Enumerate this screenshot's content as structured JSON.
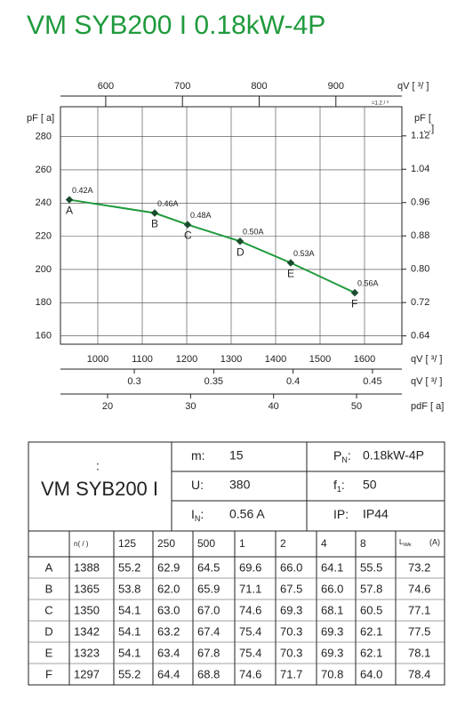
{
  "title": "VM SYB200 I 0.18kW-4P",
  "chart_data": {
    "type": "line",
    "x": [
      936,
      1128,
      1202,
      1320,
      1434,
      1578
    ],
    "series": [
      {
        "color": "#1f9a3c",
        "values": [
          242,
          234,
          227,
          217,
          204,
          186
        ]
      }
    ],
    "point_labels": [
      "A",
      "B",
      "C",
      "D",
      "E",
      "F"
    ],
    "current_labels": [
      "0.42A",
      "0.46A",
      "0.48A",
      "0.50A",
      "0.53A",
      "0.56A"
    ],
    "xlim": [
      916,
      1684
    ],
    "xticks": [
      1000,
      1100,
      1200,
      1300,
      1400,
      1500,
      1600
    ],
    "x_label": "qV [  ³/  ]",
    "ylim": [
      155,
      298
    ],
    "yticks": [
      160,
      180,
      200,
      220,
      240,
      260,
      280
    ],
    "y_label": "pF [  a]",
    "y2lim": [
      0.62,
      1.19
    ],
    "y2ticks": [
      0.64,
      0.72,
      {
        "value": 0.8,
        "label": "0.80"
      },
      0.88,
      0.96,
      1.04,
      1.12
    ],
    "y2_label": "pF [",
    "y2_label_2": ".  .]",
    "top_axis": {
      "label": "qV [   ³/   ]",
      "note": "=1.2  /  ³",
      "lim": [
        541,
        986
      ],
      "ticks": [
        600,
        700,
        800,
        900
      ]
    },
    "bottom_axes": [
      {
        "label": "qV [  ³/  ]",
        "lim": [
          0.2535,
          0.4685
        ],
        "ticks": [
          0.3,
          0.35,
          0.4,
          0.45
        ]
      },
      {
        "label": "pdF [  a]",
        "lim": [
          14.32,
          55.46
        ],
        "ticks": [
          20,
          30,
          40,
          50
        ]
      }
    ],
    "grid": true
  },
  "table": {
    "mark": ":",
    "name": "VM SYB200 I",
    "params": [
      {
        "label": "m:",
        "value": "15"
      },
      {
        "label": "P",
        "sub": "N",
        "colon": ":",
        "value": "0.18kW-4P"
      },
      {
        "label": "U:",
        "value": "380"
      },
      {
        "label": "f",
        "sub": "1",
        "colon": ":",
        "value": "50"
      },
      {
        "label": "I",
        "sub": "N",
        "colon": ":",
        "value": "0.56  A"
      },
      {
        "label": "IP:",
        "value": "IP44"
      }
    ],
    "header": [
      "n(  /  )",
      "125",
      "250",
      "500",
      "1",
      "2",
      "4",
      "8",
      "L",
      "(A)"
    ],
    "header_sub": "WAi",
    "rows": [
      [
        "A",
        "1388",
        "55.2",
        "62.9",
        "64.5",
        "69.6",
        "66.0",
        "64.1",
        "55.5",
        "73.2"
      ],
      [
        "B",
        "1365",
        "53.8",
        "62.0",
        "65.9",
        "71.1",
        "67.5",
        "66.0",
        "57.8",
        "74.6"
      ],
      [
        "C",
        "1350",
        "54.1",
        "63.0",
        "67.0",
        "74.6",
        "69.3",
        "68.1",
        "60.5",
        "77.1"
      ],
      [
        "D",
        "1342",
        "54.1",
        "63.2",
        "67.4",
        "75.4",
        "70.3",
        "69.3",
        "62.1",
        "77.5"
      ],
      [
        "E",
        "1323",
        "54.1",
        "63.4",
        "67.8",
        "75.4",
        "70.3",
        "69.3",
        "62.1",
        "78.1"
      ],
      [
        "F",
        "1297",
        "55.2",
        "64.4",
        "68.8",
        "74.6",
        "71.7",
        "70.8",
        "64.0",
        "78.4"
      ]
    ]
  }
}
